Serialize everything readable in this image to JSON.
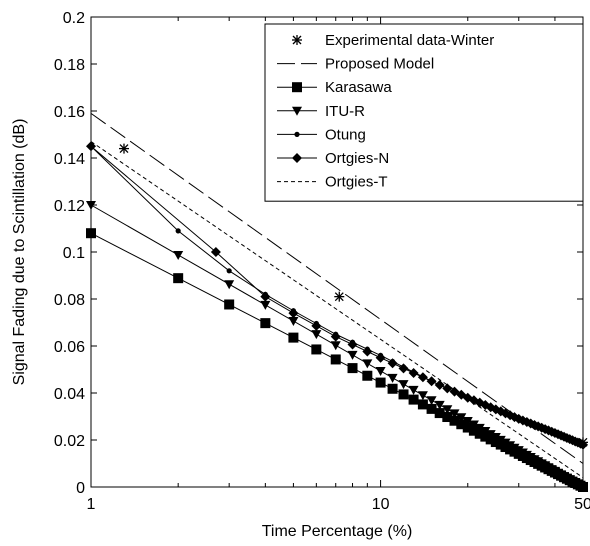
{
  "chart_data": {
    "type": "line",
    "xscale": "log",
    "xlim": [
      1,
      50
    ],
    "ylim": [
      0,
      0.2
    ],
    "xlabel": "Time Percentage (%)",
    "ylabel": "Signal Fading due to Scintillation (dB)",
    "xticks": [
      1,
      10,
      50
    ],
    "xtick_labels": [
      "1",
      "10",
      "50"
    ],
    "yticks": [
      0,
      0.02,
      0.04,
      0.06,
      0.08,
      0.1,
      0.12,
      0.14,
      0.16,
      0.18,
      0.2
    ],
    "ytick_labels": [
      "0",
      "0.02",
      "0.04",
      "0.06",
      "0.08",
      "0.1",
      "0.12",
      "0.14",
      "0.16",
      "0.18",
      "0.2"
    ],
    "grid": false,
    "legend_position": "top-right",
    "x": [
      1,
      2,
      3,
      4,
      5,
      6,
      7,
      8,
      9,
      10,
      11,
      12,
      13,
      14,
      15,
      16,
      17,
      18,
      19,
      20,
      21,
      22,
      23,
      24,
      25,
      26,
      27,
      28,
      29,
      30,
      31,
      32,
      33,
      34,
      35,
      36,
      37,
      38,
      39,
      40,
      41,
      42,
      43,
      44,
      45,
      46,
      47,
      48,
      49,
      50
    ],
    "series": [
      {
        "name": "Experimental data-Winter",
        "style": "markers",
        "marker": "asterisk",
        "color": "#000000",
        "x": [
          1.3,
          7.2,
          50
        ],
        "values": [
          0.144,
          0.081,
          0.019
        ]
      },
      {
        "name": "Proposed Model",
        "style": "longdash",
        "marker": "none",
        "color": "#000000",
        "x": [
          1,
          50
        ],
        "values": [
          0.159,
          0.01
        ]
      },
      {
        "name": "Karasawa",
        "style": "solid",
        "marker": "square",
        "color": "#000000",
        "x": [
          1,
          50
        ],
        "values": [
          0.108,
          0.0
        ]
      },
      {
        "name": "ITU-R",
        "style": "solid",
        "marker": "triangle-down",
        "color": "#000000",
        "x": [
          1,
          50
        ],
        "values": [
          0.12,
          0.0
        ]
      },
      {
        "name": "Otung",
        "style": "solid",
        "marker": "point",
        "color": "#000000",
        "x": [
          1,
          2,
          3,
          4,
          5,
          7,
          10,
          15,
          20,
          30,
          40,
          50
        ],
        "values": [
          0.145,
          0.109,
          0.092,
          0.082,
          0.075,
          0.065,
          0.056,
          0.045,
          0.038,
          0.029,
          0.023,
          0.018
        ]
      },
      {
        "name": "Ortgies-N",
        "style": "solid",
        "marker": "diamond",
        "color": "#000000",
        "x": [
          1,
          2.7,
          4,
          5,
          7,
          10,
          15,
          20,
          30,
          40,
          50
        ],
        "values": [
          0.145,
          0.1,
          0.081,
          0.074,
          0.064,
          0.055,
          0.045,
          0.038,
          0.029,
          0.023,
          0.018
        ]
      },
      {
        "name": "Ortgies-T",
        "style": "shortdash",
        "marker": "none",
        "color": "#000000",
        "x": [
          1,
          50
        ],
        "values": [
          0.147,
          0.004
        ]
      }
    ]
  }
}
